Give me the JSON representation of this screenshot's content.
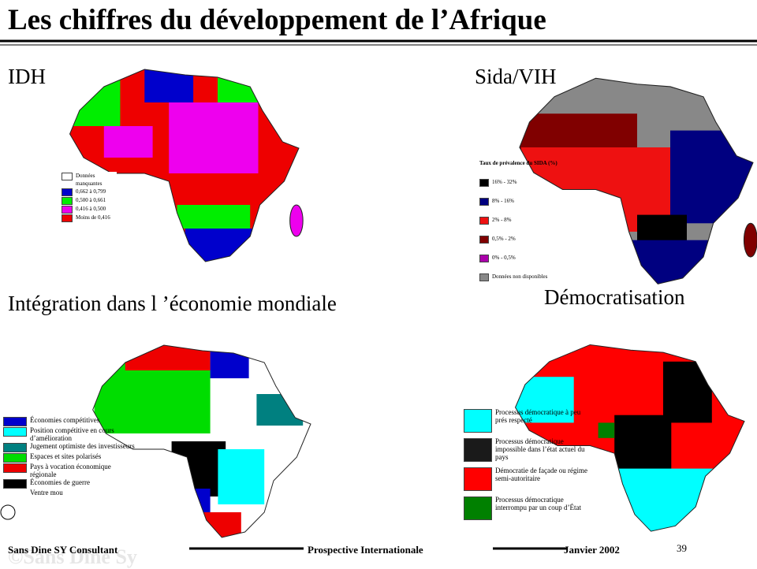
{
  "header": {
    "title": "Les chiffres du développement de l’Afrique"
  },
  "panels": [
    {
      "label": "IDH",
      "legend": {
        "items": [
          {
            "label": "Données manquantes",
            "color": "#ffffff"
          },
          {
            "label": "0,662 à 0,799",
            "color": "#0000cc"
          },
          {
            "label": "0,500 à 0,661",
            "color": "#00ee00"
          },
          {
            "label": "0,416 à 0,500",
            "color": "#ee00ee"
          },
          {
            "label": "Moins de 0,416",
            "color": "#ee0000"
          }
        ]
      }
    },
    {
      "label": "Sida/VIH",
      "legend": {
        "title": "Taux de prévalence du SIDA (%)",
        "items": [
          {
            "label": "16% - 32%",
            "color": "#000000"
          },
          {
            "label": "8% - 16%",
            "color": "#000080"
          },
          {
            "label": "2% - 8%",
            "color": "#ee1111"
          },
          {
            "label": "0,5% - 2%",
            "color": "#800000"
          },
          {
            "label": "0% - 0,5%",
            "color": "#aa00aa"
          },
          {
            "label": "Données non disponibles",
            "color": "#888888"
          }
        ]
      }
    },
    {
      "label": "Intégration dans l ’économie mondiale",
      "legend": {
        "items": [
          {
            "label": "Économies compétitives",
            "color": "#0000cc"
          },
          {
            "label": "Position compétitive en cours d’amélioration",
            "color": "#00ffff"
          },
          {
            "label": "Jugement optimiste des investisseurs",
            "color": "#008080"
          },
          {
            "label": "Espaces et sites polarisés",
            "color": "#00dd00"
          },
          {
            "label": "Pays à vocation économique régionale",
            "color": "#ee0000"
          },
          {
            "label": "Économies de guerre",
            "color": "#000000"
          },
          {
            "label": "Ventre mou",
            "color": "#ffffff"
          }
        ]
      }
    },
    {
      "label": "Démocratisation",
      "legend": {
        "items": [
          {
            "label": "Processus démocratique à peu prés respecté",
            "color": "#00ffff"
          },
          {
            "label": "Processus démocratique impossible dans l’état actuel du pays",
            "color": "#1a1a1a"
          },
          {
            "label": "Démocratie de façade ou régime semi-autoritaire",
            "color": "#ff0000"
          },
          {
            "label": "Processus démocratique interrompu par un coup d’État",
            "color": "#008000"
          }
        ]
      }
    }
  ],
  "footer": {
    "author": "Sans Dine SY Consultant",
    "subject": "Prospective Internationale",
    "date": "Janvier 2002",
    "page": "39",
    "watermark": "©Sans Dine Sy"
  }
}
